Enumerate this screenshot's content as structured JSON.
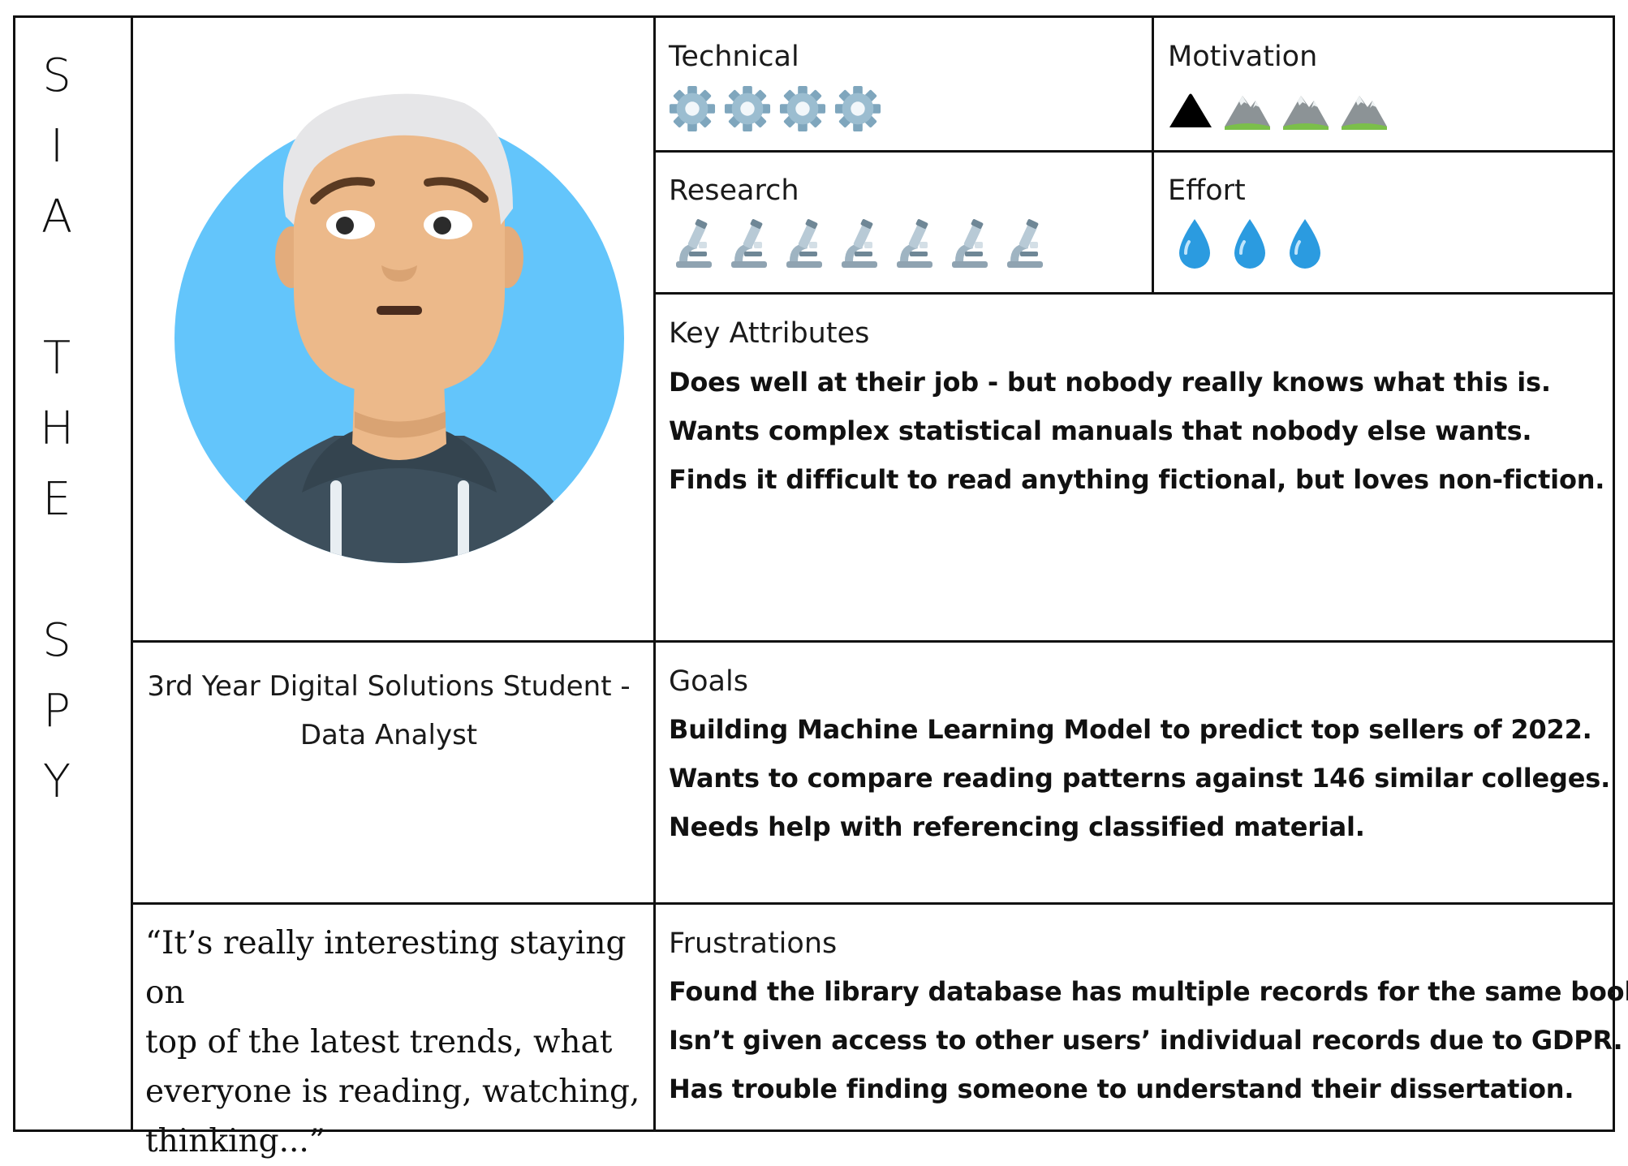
{
  "persona": {
    "name_letters": [
      "S",
      "I",
      "A",
      "T",
      "H",
      "E",
      "S",
      "P",
      "Y"
    ]
  },
  "ratings": {
    "technical": {
      "label": "Technical",
      "icon": "gear-icon",
      "count": 4
    },
    "motivation": {
      "label": "Motivation",
      "icon": "mountain-icon",
      "count": 4,
      "first_icon": "black-triangle-icon"
    },
    "research": {
      "label": "Research",
      "icon": "microscope-icon",
      "count": 7
    },
    "effort": {
      "label": "Effort",
      "icon": "droplet-icon",
      "count": 3
    }
  },
  "key_attributes": {
    "label": "Key Attributes",
    "lines": [
      "Does well at their job - but nobody really knows what this is.",
      "Wants complex statistical manuals that nobody else wants.",
      "Finds it difficult to read anything fictional, but loves non-fiction."
    ]
  },
  "role": {
    "line1": "3rd Year Digital Solutions Student -",
    "line2": "Data Analyst"
  },
  "goals": {
    "label": "Goals",
    "lines": [
      "Building Machine Learning Model to predict top sellers of 2022.",
      "Wants to compare reading patterns against 146 similar colleges.",
      "Needs help with referencing classified material."
    ]
  },
  "quote": {
    "lines": [
      "“It’s really interesting staying on",
      "top of the latest trends, what",
      "everyone is reading, watching,",
      "thinking...”"
    ]
  },
  "frustrations": {
    "label": "Frustrations",
    "lines": [
      "Found the library database has multiple records for the same book.",
      "Isn’t given access to other users’ individual records due to GDPR.",
      "Has trouble finding someone to understand their dissertation."
    ]
  },
  "colors": {
    "border": "#111111",
    "avatar_bg": "#63c5fb",
    "skin": "#ecb98a",
    "hair": "#e6e6e8",
    "hoodie": "#3d4f5c",
    "droplet": "#2b9be0"
  }
}
